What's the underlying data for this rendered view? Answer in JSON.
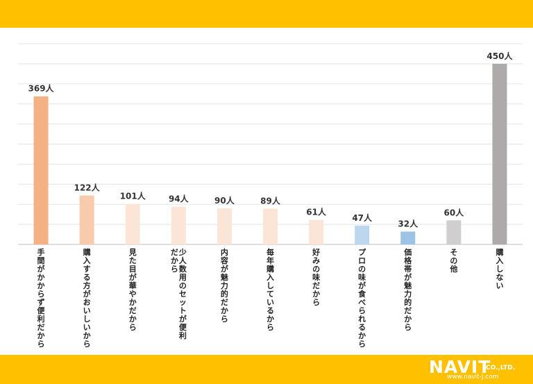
{
  "brand": {
    "name": "NAVIT",
    "suffix": "CO.,LTD.",
    "url": "www.navit-j.com"
  },
  "chart_data": {
    "type": "bar",
    "categories": [
      "手間がかからず便利だから",
      "購入する方がおいしいから",
      "見た目が華やかだから",
      "少人数用のセットが便利だから",
      "内容が魅力的だから",
      "毎年購入しているから",
      "好みの味だから",
      "プロの味が食べられるから",
      "価格帯が魅力的だから",
      "その他",
      "購入しない"
    ],
    "values": [
      369,
      122,
      101,
      94,
      90,
      89,
      61,
      47,
      32,
      60,
      450
    ],
    "value_labels": [
      "369人",
      "122人",
      "101人",
      "94人",
      "90人",
      "89人",
      "61人",
      "47人",
      "32人",
      "60人",
      "450人"
    ],
    "colors": [
      "#F4B183",
      "#F8CBAD",
      "#FBE5D6",
      "#FBE5D6",
      "#FBE5D6",
      "#FBE5D6",
      "#FBE5D6",
      "#BDD7EE",
      "#9DC3E6",
      "#D0CECE",
      "#AEAAAA"
    ],
    "ylim": [
      0,
      500
    ],
    "grid": true,
    "title": "",
    "xlabel": "",
    "ylabel": ""
  }
}
